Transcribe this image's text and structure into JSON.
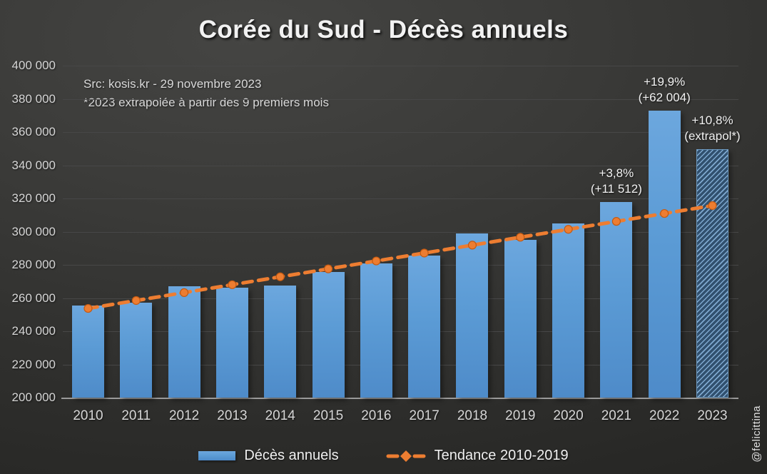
{
  "title": "Corée du Sud - Décès annuels",
  "source": {
    "line1": "Src: kosis.kr - 29 novembre 2023",
    "line2": "*2023 extrapolée à partir des 9 premiers mois"
  },
  "watermark": "@felicittina",
  "legend": {
    "bars_label": "Décès annuels",
    "trend_label": "Tendance 2010-2019"
  },
  "colors": {
    "bar": "#5B9BD5",
    "trend": "#ED7D31",
    "trend_marker_stroke": "#C55A11",
    "hatch_base": "#31506E",
    "hatch_stripe": "#7FA9D0",
    "text": "#D9D9D9",
    "grid": "#474747",
    "axis": "#9A9A9A"
  },
  "chart_data": {
    "type": "bar",
    "title": "Corée du Sud - Décès annuels",
    "categories": [
      "2010",
      "2011",
      "2012",
      "2013",
      "2014",
      "2015",
      "2016",
      "2017",
      "2018",
      "2019",
      "2020",
      "2021",
      "2022",
      "2023"
    ],
    "series": [
      {
        "name": "Décès annuels",
        "type": "bar",
        "values": [
          255405,
          257396,
          267221,
          266257,
          267692,
          275895,
          280827,
          285534,
          298820,
          295110,
          304948,
          317680,
          372939,
          349800
        ],
        "note": "2023 bar hatched = extrapolated from first 9 months"
      },
      {
        "name": "Tendance 2010-2019",
        "type": "line",
        "style": "dashed-with-markers",
        "values": [
          253731,
          258498,
          263265,
          268032,
          272799,
          277566,
          282333,
          287100,
          291867,
          296634,
          301401,
          306168,
          310935,
          315702
        ]
      }
    ],
    "xlabel": "",
    "ylabel": "",
    "ylim": [
      200000,
      400000
    ],
    "ytick_step": 20000,
    "ytick_labels": [
      "200 000",
      "220 000",
      "240 000",
      "260 000",
      "280 000",
      "300 000",
      "320 000",
      "340 000",
      "360 000",
      "380 000",
      "400 000"
    ],
    "grid": true,
    "legend_position": "bottom",
    "annotations": [
      {
        "year": "2021",
        "lines": [
          "+3,8%",
          "(+11 512)"
        ]
      },
      {
        "year": "2022",
        "lines": [
          "+19,9%",
          "(+62 004)"
        ]
      },
      {
        "year": "2023",
        "lines": [
          "+10,8%",
          "(extrapol*)"
        ]
      }
    ]
  }
}
